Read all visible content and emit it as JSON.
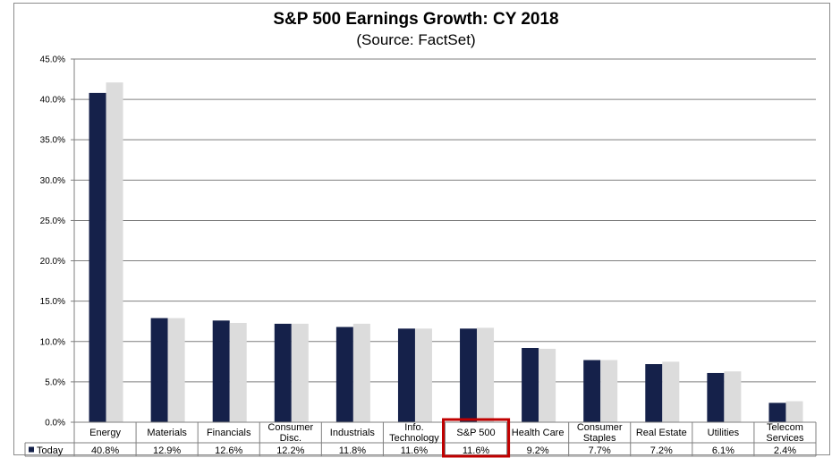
{
  "chart_data": {
    "type": "bar",
    "title": "S&P 500 Earnings Growth: CY 2018",
    "subtitle": "(Source: FactSet)",
    "categories": [
      [
        "Energy"
      ],
      [
        "Materials"
      ],
      [
        "Financials"
      ],
      [
        "Consumer",
        "Disc."
      ],
      [
        "Industrials"
      ],
      [
        "Info.",
        "Technology"
      ],
      [
        "S&P 500"
      ],
      [
        "Health Care"
      ],
      [
        "Consumer",
        "Staples"
      ],
      [
        "Real Estate"
      ],
      [
        "Utilities"
      ],
      [
        "Telecom",
        "Services"
      ]
    ],
    "series": [
      {
        "name": "Today",
        "color": "#15214a",
        "values": [
          40.8,
          12.9,
          12.6,
          12.2,
          11.8,
          11.6,
          11.6,
          9.2,
          7.7,
          7.2,
          6.1,
          2.4
        ],
        "labels": [
          "40.8%",
          "12.9%",
          "12.6%",
          "12.2%",
          "11.8%",
          "11.6%",
          "11.6%",
          "9.2%",
          "7.7%",
          "7.2%",
          "6.1%",
          "2.4%"
        ]
      },
      {
        "color": "#dcdcdc",
        "values": [
          42.1,
          12.9,
          12.3,
          12.2,
          12.2,
          11.6,
          11.7,
          9.1,
          7.7,
          7.5,
          6.3,
          2.6
        ]
      }
    ],
    "ylim": [
      0,
      45
    ],
    "yticks": [
      "0.0%",
      "5.0%",
      "10.0%",
      "15.0%",
      "20.0%",
      "25.0%",
      "30.0%",
      "35.0%",
      "40.0%",
      "45.0%"
    ],
    "grid": true,
    "legend": "data-table",
    "highlight_category": "S&P 500",
    "highlight_color": "#c00000"
  }
}
